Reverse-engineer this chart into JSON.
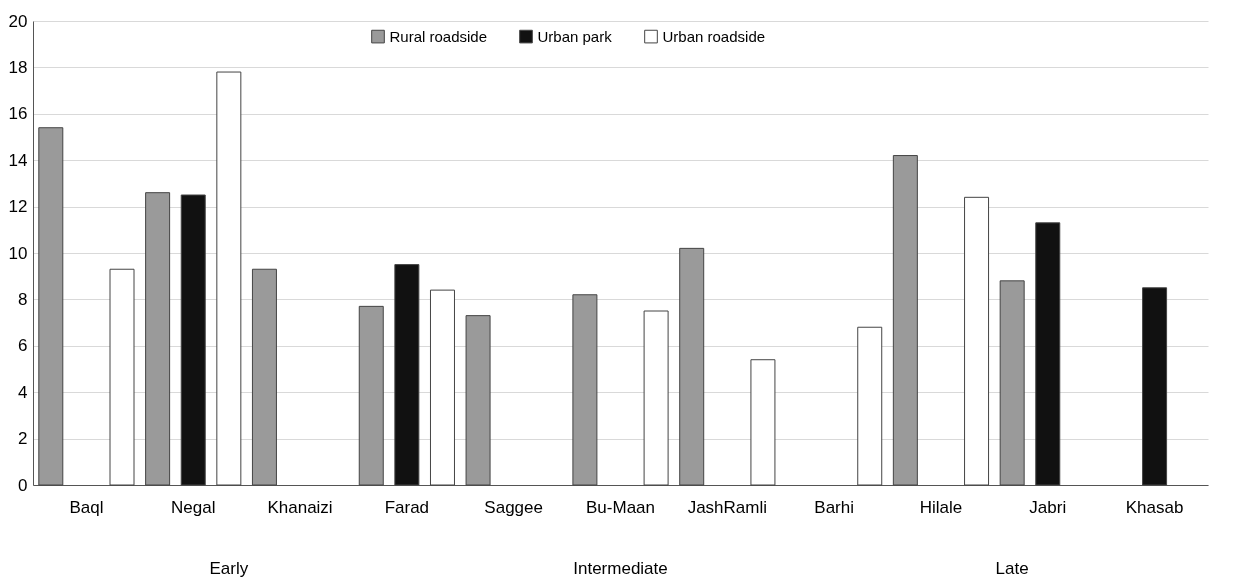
{
  "chart_data": {
    "type": "bar",
    "categories": [
      "Baql",
      "Negal",
      "Khanaizi",
      "Farad",
      "Saggee",
      "Bu-Maan",
      "JashRamli",
      "Barhi",
      "Hilale",
      "Jabri",
      "Khasab"
    ],
    "series": [
      {
        "name": "Rural roadside",
        "color": "#9a9a9a",
        "values": [
          15.4,
          12.6,
          9.3,
          7.7,
          7.3,
          8.2,
          10.2,
          null,
          14.2,
          8.8,
          null
        ]
      },
      {
        "name": "Urban park",
        "color": "#111111",
        "values": [
          null,
          12.5,
          null,
          9.5,
          null,
          null,
          null,
          null,
          null,
          11.3,
          8.5
        ]
      },
      {
        "name": "Urban roadside",
        "color": "#ffffff",
        "values": [
          9.3,
          17.8,
          null,
          8.4,
          null,
          7.5,
          5.4,
          6.8,
          12.4,
          null,
          null
        ]
      }
    ],
    "ylim": [
      0,
      20
    ],
    "yticks": [
      0,
      2,
      4,
      6,
      8,
      10,
      12,
      14,
      16,
      18,
      20
    ],
    "grid": "y",
    "legend": "top",
    "annotations": [
      "Early",
      "Intermediate",
      "Late"
    ]
  }
}
